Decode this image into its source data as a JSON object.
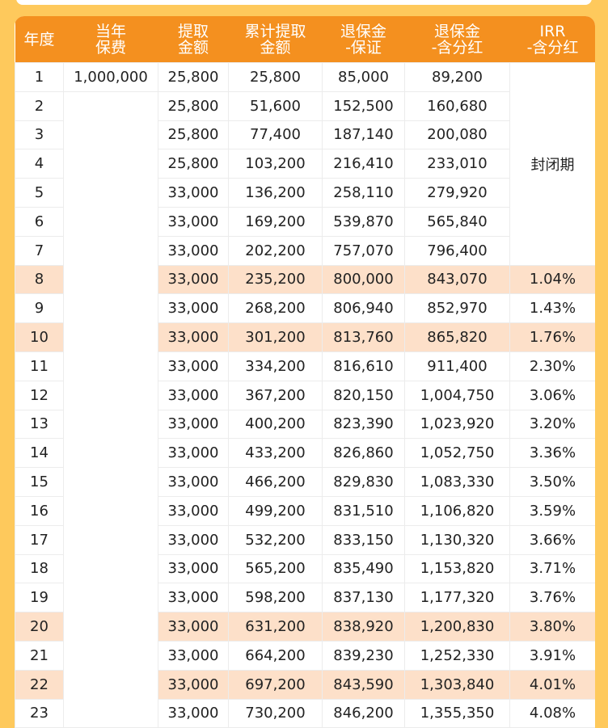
{
  "headers": [
    "年度",
    "当年\n保费",
    "提取\n金额",
    "累计提取\n金额",
    "退保金\n-保证",
    "退保金\n-含分红",
    "IRR\n-含分红"
  ],
  "premium_first_year": "1,000,000",
  "irr_locked_label": "封闭期",
  "highlight_color": "#fde0c9",
  "header_color": "#f4901f",
  "rows": [
    {
      "year": "1",
      "withdraw": "25,800",
      "cum": "25,800",
      "guar": "85,000",
      "div": "89,200",
      "irr": "",
      "hl": false
    },
    {
      "year": "2",
      "withdraw": "25,800",
      "cum": "51,600",
      "guar": "152,500",
      "div": "160,680",
      "irr": "",
      "hl": false
    },
    {
      "year": "3",
      "withdraw": "25,800",
      "cum": "77,400",
      "guar": "187,140",
      "div": "200,080",
      "irr": "",
      "hl": false
    },
    {
      "year": "4",
      "withdraw": "25,800",
      "cum": "103,200",
      "guar": "216,410",
      "div": "233,010",
      "irr": "",
      "hl": false
    },
    {
      "year": "5",
      "withdraw": "33,000",
      "cum": "136,200",
      "guar": "258,110",
      "div": "279,920",
      "irr": "",
      "hl": false
    },
    {
      "year": "6",
      "withdraw": "33,000",
      "cum": "169,200",
      "guar": "539,870",
      "div": "565,840",
      "irr": "",
      "hl": false
    },
    {
      "year": "7",
      "withdraw": "33,000",
      "cum": "202,200",
      "guar": "757,070",
      "div": "796,400",
      "irr": "",
      "hl": false
    },
    {
      "year": "8",
      "withdraw": "33,000",
      "cum": "235,200",
      "guar": "800,000",
      "div": "843,070",
      "irr": "1.04%",
      "hl": true
    },
    {
      "year": "9",
      "withdraw": "33,000",
      "cum": "268,200",
      "guar": "806,940",
      "div": "852,970",
      "irr": "1.43%",
      "hl": false
    },
    {
      "year": "10",
      "withdraw": "33,000",
      "cum": "301,200",
      "guar": "813,760",
      "div": "865,820",
      "irr": "1.76%",
      "hl": true
    },
    {
      "year": "11",
      "withdraw": "33,000",
      "cum": "334,200",
      "guar": "816,610",
      "div": "911,400",
      "irr": "2.30%",
      "hl": false
    },
    {
      "year": "12",
      "withdraw": "33,000",
      "cum": "367,200",
      "guar": "820,150",
      "div": "1,004,750",
      "irr": "3.06%",
      "hl": false
    },
    {
      "year": "13",
      "withdraw": "33,000",
      "cum": "400,200",
      "guar": "823,390",
      "div": "1,023,920",
      "irr": "3.20%",
      "hl": false
    },
    {
      "year": "14",
      "withdraw": "33,000",
      "cum": "433,200",
      "guar": "826,860",
      "div": "1,052,750",
      "irr": "3.36%",
      "hl": false
    },
    {
      "year": "15",
      "withdraw": "33,000",
      "cum": "466,200",
      "guar": "829,830",
      "div": "1,083,330",
      "irr": "3.50%",
      "hl": false
    },
    {
      "year": "16",
      "withdraw": "33,000",
      "cum": "499,200",
      "guar": "831,510",
      "div": "1,106,820",
      "irr": "3.59%",
      "hl": false
    },
    {
      "year": "17",
      "withdraw": "33,000",
      "cum": "532,200",
      "guar": "833,150",
      "div": "1,130,320",
      "irr": "3.66%",
      "hl": false
    },
    {
      "year": "18",
      "withdraw": "33,000",
      "cum": "565,200",
      "guar": "835,490",
      "div": "1,153,820",
      "irr": "3.71%",
      "hl": false
    },
    {
      "year": "19",
      "withdraw": "33,000",
      "cum": "598,200",
      "guar": "837,130",
      "div": "1,177,320",
      "irr": "3.76%",
      "hl": false
    },
    {
      "year": "20",
      "withdraw": "33,000",
      "cum": "631,200",
      "guar": "838,920",
      "div": "1,200,830",
      "irr": "3.80%",
      "hl": true
    },
    {
      "year": "21",
      "withdraw": "33,000",
      "cum": "664,200",
      "guar": "839,230",
      "div": "1,252,330",
      "irr": "3.91%",
      "hl": false
    },
    {
      "year": "22",
      "withdraw": "33,000",
      "cum": "697,200",
      "guar": "843,590",
      "div": "1,303,840",
      "irr": "4.01%",
      "hl": true
    },
    {
      "year": "23",
      "withdraw": "33,000",
      "cum": "730,200",
      "guar": "846,200",
      "div": "1,355,350",
      "irr": "4.08%",
      "hl": false
    }
  ]
}
